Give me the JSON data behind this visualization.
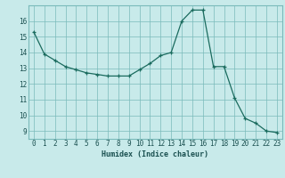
{
  "x": [
    0,
    1,
    2,
    3,
    4,
    5,
    6,
    7,
    8,
    9,
    10,
    11,
    12,
    13,
    14,
    15,
    16,
    17,
    18,
    19,
    20,
    21,
    22,
    23
  ],
  "y": [
    15.3,
    13.9,
    13.5,
    13.1,
    12.9,
    12.7,
    12.6,
    12.5,
    12.5,
    12.5,
    12.9,
    13.3,
    13.8,
    14.0,
    16.0,
    16.7,
    16.7,
    13.1,
    13.1,
    11.1,
    9.8,
    9.5,
    9.0,
    8.9
  ],
  "line_color": "#1a6b5e",
  "marker": "+",
  "marker_color": "#1a6b5e",
  "bg_color": "#c8eaea",
  "grid_color": "#7ababa",
  "xlabel": "Humidex (Indice chaleur)",
  "xlim": [
    -0.5,
    23.5
  ],
  "ylim": [
    8.5,
    17.0
  ],
  "yticks": [
    9,
    10,
    11,
    12,
    13,
    14,
    15,
    16
  ],
  "xticks": [
    0,
    1,
    2,
    3,
    4,
    5,
    6,
    7,
    8,
    9,
    10,
    11,
    12,
    13,
    14,
    15,
    16,
    17,
    18,
    19,
    20,
    21,
    22,
    23
  ],
  "font_color": "#1a5050",
  "fontsize_label": 6,
  "fontsize_tick": 5.5
}
